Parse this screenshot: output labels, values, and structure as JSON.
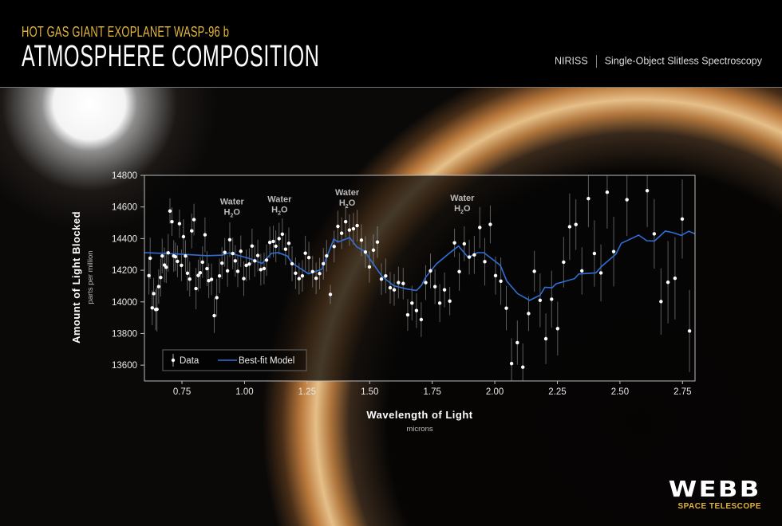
{
  "header": {
    "subtitle": "HOT GAS GIANT EXOPLANET WASP-96 b",
    "title": "ATMOSPHERE COMPOSITION",
    "instrument": "NIRISS",
    "mode": "Single-Object Slitless Spectroscopy"
  },
  "logo": {
    "word": "WEBB",
    "sub": "SPACE TELESCOPE"
  },
  "colors": {
    "accent": "#e2b43a",
    "model": "#2f6fd6",
    "data": "#ffffff"
  },
  "chart_data": {
    "type": "scatter",
    "xlabel": "Wavelength of Light",
    "xunit": "microns",
    "ylabel": "Amount of Light Blocked",
    "yunit": "parts per million",
    "xlim": [
      0.6,
      2.8
    ],
    "ylim": [
      13500,
      14800
    ],
    "xticks": [
      "0.75",
      "1.00",
      "1.25",
      "1.50",
      "1.75",
      "2.00",
      "2.25",
      "2.50",
      "2.75"
    ],
    "yticks": [
      "13600",
      "13800",
      "14000",
      "14200",
      "14400",
      "14600",
      "14800"
    ],
    "grid": false,
    "legend": {
      "placement": "bottom-left",
      "data": "Data",
      "model": "Best-fit Model"
    },
    "annotations": [
      {
        "name": "Water",
        "formula_main": "H",
        "formula_sub": "2",
        "formula_end": "O",
        "x": 0.95,
        "y": 14615
      },
      {
        "name": "Water",
        "formula_main": "H",
        "formula_sub": "2",
        "formula_end": "O",
        "x": 1.14,
        "y": 14630
      },
      {
        "name": "Water",
        "formula_main": "H",
        "formula_sub": "2",
        "formula_end": "O",
        "x": 1.41,
        "y": 14675
      },
      {
        "name": "Water",
        "formula_main": "H",
        "formula_sub": "2",
        "formula_end": "O",
        "x": 1.87,
        "y": 14640
      }
    ],
    "series": [
      {
        "name": "Data",
        "points": [
          [
            0.618,
            14166,
            120
          ],
          [
            0.623,
            14276,
            130
          ],
          [
            0.631,
            13962,
            110
          ],
          [
            0.637,
            14052,
            100
          ],
          [
            0.645,
            13952,
            130
          ],
          [
            0.65,
            13953,
            140
          ],
          [
            0.657,
            14097,
            110
          ],
          [
            0.665,
            14154,
            120
          ],
          [
            0.671,
            14290,
            110
          ],
          [
            0.68,
            14233,
            110
          ],
          [
            0.687,
            14219,
            100
          ],
          [
            0.695,
            14310,
            120
          ],
          [
            0.702,
            14574,
            80
          ],
          [
            0.71,
            14507,
            90
          ],
          [
            0.717,
            14290,
            100
          ],
          [
            0.724,
            14285,
            90
          ],
          [
            0.732,
            14256,
            100
          ],
          [
            0.74,
            14494,
            90
          ],
          [
            0.748,
            14231,
            100
          ],
          [
            0.756,
            14412,
            110
          ],
          [
            0.764,
            14290,
            100
          ],
          [
            0.772,
            14181,
            110
          ],
          [
            0.781,
            14144,
            110
          ],
          [
            0.789,
            14449,
            110
          ],
          [
            0.798,
            14520,
            100
          ],
          [
            0.806,
            14084,
            130
          ],
          [
            0.815,
            14167,
            100
          ],
          [
            0.823,
            14184,
            100
          ],
          [
            0.832,
            14251,
            100
          ],
          [
            0.842,
            14424,
            110
          ],
          [
            0.85,
            14210,
            110
          ],
          [
            0.857,
            14134,
            110
          ],
          [
            0.868,
            14142,
            100
          ],
          [
            0.879,
            13913,
            110
          ],
          [
            0.889,
            14027,
            120
          ],
          [
            0.9,
            14164,
            110
          ],
          [
            0.91,
            14245,
            100
          ],
          [
            0.921,
            14313,
            90
          ],
          [
            0.932,
            14196,
            100
          ],
          [
            0.941,
            14393,
            110
          ],
          [
            0.953,
            14306,
            100
          ],
          [
            0.963,
            14259,
            100
          ],
          [
            0.973,
            14193,
            100
          ],
          [
            0.985,
            14320,
            100
          ],
          [
            0.997,
            14147,
            110
          ],
          [
            1.007,
            14231,
            100
          ],
          [
            1.019,
            14239,
            100
          ],
          [
            1.03,
            14353,
            110
          ],
          [
            1.041,
            14259,
            100
          ],
          [
            1.053,
            14293,
            100
          ],
          [
            1.065,
            14204,
            100
          ],
          [
            1.078,
            14211,
            100
          ],
          [
            1.088,
            14264,
            100
          ],
          [
            1.101,
            14376,
            100
          ],
          [
            1.115,
            14382,
            100
          ],
          [
            1.125,
            14352,
            100
          ],
          [
            1.138,
            14400,
            100
          ],
          [
            1.151,
            14428,
            100
          ],
          [
            1.164,
            14333,
            100
          ],
          [
            1.177,
            14370,
            100
          ],
          [
            1.19,
            14241,
            110
          ],
          [
            1.204,
            14181,
            100
          ],
          [
            1.218,
            14147,
            100
          ],
          [
            1.231,
            14164,
            100
          ],
          [
            1.243,
            14308,
            110
          ],
          [
            1.257,
            14280,
            100
          ],
          [
            1.272,
            14191,
            100
          ],
          [
            1.286,
            14149,
            100
          ],
          [
            1.3,
            14179,
            100
          ],
          [
            1.315,
            14241,
            100
          ],
          [
            1.328,
            14291,
            100
          ],
          [
            1.343,
            14047,
            60
          ],
          [
            1.358,
            14350,
            100
          ],
          [
            1.373,
            14477,
            100
          ],
          [
            1.388,
            14434,
            100
          ],
          [
            1.404,
            14507,
            100
          ],
          [
            1.419,
            14454,
            100
          ],
          [
            1.435,
            14462,
            100
          ],
          [
            1.45,
            14482,
            100
          ],
          [
            1.467,
            14390,
            100
          ],
          [
            1.483,
            14315,
            100
          ],
          [
            1.499,
            14221,
            100
          ],
          [
            1.515,
            14327,
            100
          ],
          [
            1.531,
            14378,
            100
          ],
          [
            1.547,
            14144,
            100
          ],
          [
            1.564,
            14164,
            110
          ],
          [
            1.582,
            14089,
            100
          ],
          [
            1.598,
            14076,
            100
          ],
          [
            1.615,
            14122,
            100
          ],
          [
            1.634,
            14116,
            100
          ],
          [
            1.652,
            13918,
            100
          ],
          [
            1.669,
            13992,
            110
          ],
          [
            1.687,
            13945,
            110
          ],
          [
            1.706,
            13888,
            110
          ],
          [
            1.724,
            14122,
            110
          ],
          [
            1.743,
            14196,
            110
          ],
          [
            1.761,
            14096,
            110
          ],
          [
            1.78,
            13992,
            120
          ],
          [
            1.799,
            14076,
            110
          ],
          [
            1.82,
            14005,
            90
          ],
          [
            1.839,
            14373,
            90
          ],
          [
            1.858,
            14191,
            120
          ],
          [
            1.878,
            14367,
            110
          ],
          [
            1.898,
            14283,
            110
          ],
          [
            1.918,
            14297,
            120
          ],
          [
            1.94,
            14470,
            130
          ],
          [
            1.96,
            14254,
            150
          ],
          [
            1.982,
            14490,
            120
          ],
          [
            2.003,
            14166,
            120
          ],
          [
            2.024,
            14131,
            150
          ],
          [
            2.046,
            13960,
            140
          ],
          [
            2.067,
            13610,
            160
          ],
          [
            2.09,
            13742,
            140
          ],
          [
            2.112,
            13587,
            150
          ],
          [
            2.135,
            13926,
            110
          ],
          [
            2.158,
            14193,
            130
          ],
          [
            2.181,
            14010,
            170
          ],
          [
            2.204,
            13767,
            160
          ],
          [
            2.227,
            14017,
            180
          ],
          [
            2.251,
            13831,
            170
          ],
          [
            2.275,
            14251,
            160
          ],
          [
            2.299,
            14475,
            210
          ],
          [
            2.324,
            14489,
            160
          ],
          [
            2.348,
            14196,
            150
          ],
          [
            2.374,
            14653,
            180
          ],
          [
            2.398,
            14306,
            210
          ],
          [
            2.424,
            14183,
            180
          ],
          [
            2.449,
            14693,
            230
          ],
          [
            2.475,
            14318,
            220
          ],
          [
            2.528,
            14646,
            230
          ],
          [
            2.609,
            14703,
            230
          ],
          [
            2.637,
            14430,
            220
          ],
          [
            2.664,
            14002,
            210
          ],
          [
            2.692,
            14124,
            260
          ],
          [
            2.72,
            14149,
            260
          ],
          [
            2.749,
            14524,
            250
          ],
          [
            2.778,
            13816,
            260
          ]
        ]
      },
      {
        "name": "Best-fit Model",
        "points": [
          [
            0.6,
            14311
          ],
          [
            0.7,
            14305
          ],
          [
            0.76,
            14300
          ],
          [
            0.85,
            14292
          ],
          [
            0.91,
            14295
          ],
          [
            0.94,
            14310
          ],
          [
            0.97,
            14296
          ],
          [
            1.022,
            14273
          ],
          [
            1.07,
            14243
          ],
          [
            1.107,
            14306
          ],
          [
            1.134,
            14311
          ],
          [
            1.171,
            14290
          ],
          [
            1.19,
            14245
          ],
          [
            1.256,
            14177
          ],
          [
            1.309,
            14206
          ],
          [
            1.33,
            14290
          ],
          [
            1.357,
            14398
          ],
          [
            1.373,
            14378
          ],
          [
            1.42,
            14407
          ],
          [
            1.448,
            14348
          ],
          [
            1.48,
            14320
          ],
          [
            1.511,
            14248
          ],
          [
            1.548,
            14164
          ],
          [
            1.596,
            14102
          ],
          [
            1.65,
            14081
          ],
          [
            1.687,
            14072
          ],
          [
            1.708,
            14106
          ],
          [
            1.724,
            14156
          ],
          [
            1.767,
            14240
          ],
          [
            1.814,
            14302
          ],
          [
            1.855,
            14353
          ],
          [
            1.894,
            14281
          ],
          [
            1.931,
            14311
          ],
          [
            1.956,
            14311
          ],
          [
            2.022,
            14231
          ],
          [
            2.048,
            14131
          ],
          [
            2.091,
            14052
          ],
          [
            2.139,
            14010
          ],
          [
            2.181,
            14042
          ],
          [
            2.2,
            14092
          ],
          [
            2.229,
            14089
          ],
          [
            2.245,
            14114
          ],
          [
            2.319,
            14147
          ],
          [
            2.335,
            14176
          ],
          [
            2.404,
            14184
          ],
          [
            2.426,
            14223
          ],
          [
            2.484,
            14302
          ],
          [
            2.505,
            14370
          ],
          [
            2.575,
            14422
          ],
          [
            2.607,
            14387
          ],
          [
            2.638,
            14385
          ],
          [
            2.681,
            14448
          ],
          [
            2.713,
            14437
          ],
          [
            2.745,
            14420
          ],
          [
            2.775,
            14447
          ],
          [
            2.8,
            14430
          ]
        ]
      }
    ]
  }
}
